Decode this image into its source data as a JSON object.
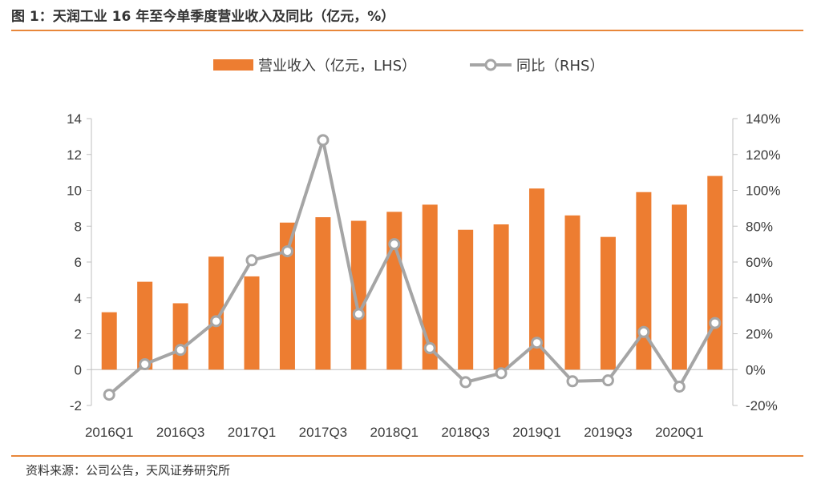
{
  "figure": {
    "title": "图 1：天润工业 16 年至今单季度营业收入及同比（亿元，%）",
    "source": "资料来源：公司公告，天风证券研究所"
  },
  "colors": {
    "bar": "#ED7D31",
    "line": "#A5A5A5",
    "accent_rule": "#E8873A",
    "axis": "#BFBFBF"
  },
  "chart_data": {
    "type": "bar",
    "categories": [
      "2016Q1",
      "2016Q2",
      "2016Q3",
      "2016Q4",
      "2017Q1",
      "2017Q2",
      "2017Q3",
      "2017Q4",
      "2018Q1",
      "2018Q2",
      "2018Q3",
      "2018Q4",
      "2019Q1",
      "2019Q2",
      "2019Q3",
      "2019Q4",
      "2020Q1",
      "2020Q2"
    ],
    "x_tick_labels": [
      "2016Q1",
      "2016Q3",
      "2017Q1",
      "2017Q3",
      "2018Q1",
      "2018Q3",
      "2019Q1",
      "2019Q3",
      "2020Q1"
    ],
    "series": [
      {
        "name": "营业收入（亿元，LHS）",
        "type": "bar",
        "axis": "left",
        "values": [
          3.2,
          4.9,
          3.7,
          6.3,
          5.2,
          8.2,
          8.5,
          8.3,
          8.8,
          9.2,
          7.8,
          8.1,
          10.1,
          8.6,
          7.4,
          9.9,
          9.2,
          10.8
        ]
      },
      {
        "name": "同比（RHS）",
        "type": "line",
        "axis": "right",
        "values": [
          -14,
          3,
          11,
          27,
          61,
          66,
          128,
          31,
          70,
          12,
          -7,
          -2,
          15,
          -6.5,
          -6,
          21,
          -9.5,
          26
        ]
      }
    ],
    "y_left": {
      "min": -2,
      "max": 14,
      "ticks": [
        "-2",
        "0",
        "2",
        "4",
        "6",
        "8",
        "10",
        "12",
        "14"
      ]
    },
    "y_right": {
      "min": -20,
      "max": 140,
      "ticks": [
        "-20%",
        "0%",
        "20%",
        "40%",
        "60%",
        "80%",
        "100%",
        "120%",
        "140%"
      ]
    },
    "legend_position": "top-center",
    "grid": false
  }
}
